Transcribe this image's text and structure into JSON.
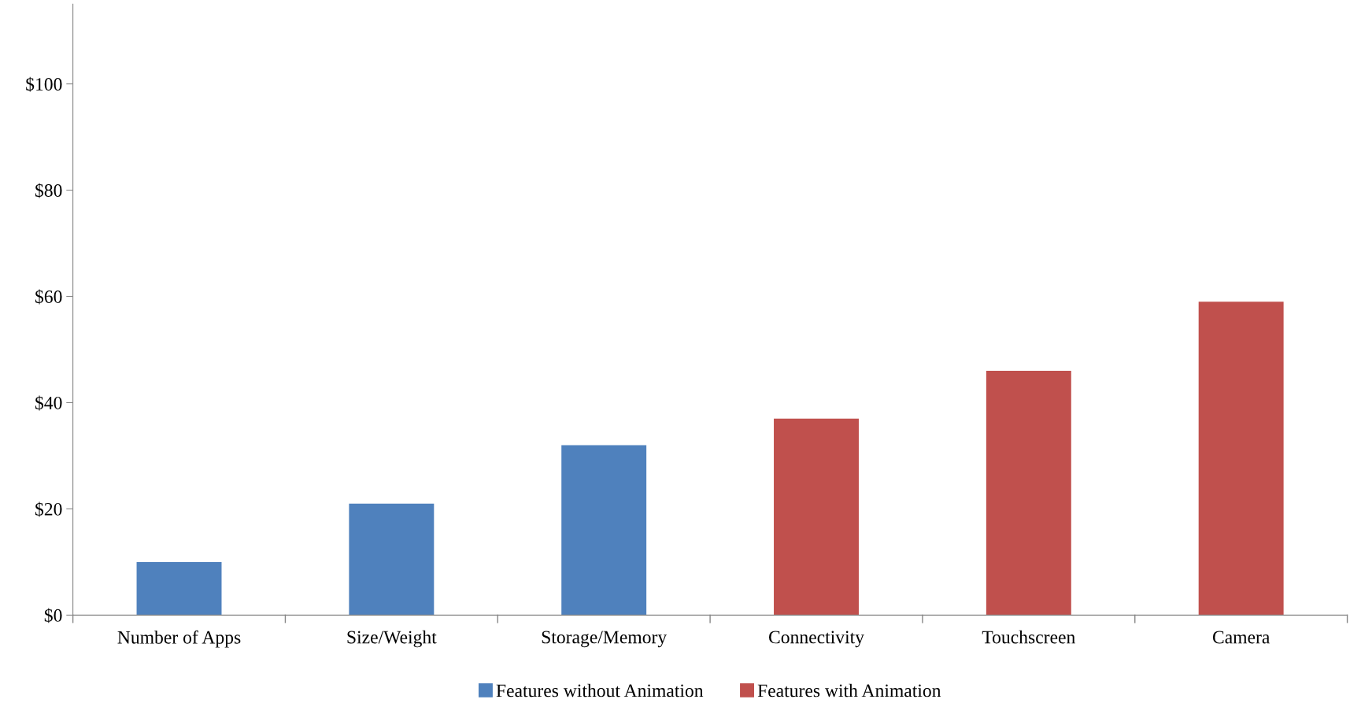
{
  "chart_data": {
    "type": "bar",
    "categories": [
      "Number of Apps",
      "Size/Weight",
      "Storage/Memory",
      "Connectivity",
      "Touchscreen",
      "Camera"
    ],
    "series": [
      {
        "name": "Features without Animation",
        "color": "#4f81bd",
        "values": [
          10,
          21,
          32,
          null,
          null,
          null
        ]
      },
      {
        "name": "Features with Animation",
        "color": "#c0504d",
        "values": [
          null,
          null,
          null,
          37,
          46,
          59
        ]
      }
    ],
    "ylim": [
      0,
      115
    ],
    "yticks": [
      {
        "value": 0,
        "label": "$0"
      },
      {
        "value": 20,
        "label": "$20"
      },
      {
        "value": 40,
        "label": "$40"
      },
      {
        "value": 60,
        "label": "$60"
      },
      {
        "value": 80,
        "label": "$80"
      },
      {
        "value": 100,
        "label": "$100"
      }
    ],
    "grid": false,
    "legend": "bottom"
  }
}
